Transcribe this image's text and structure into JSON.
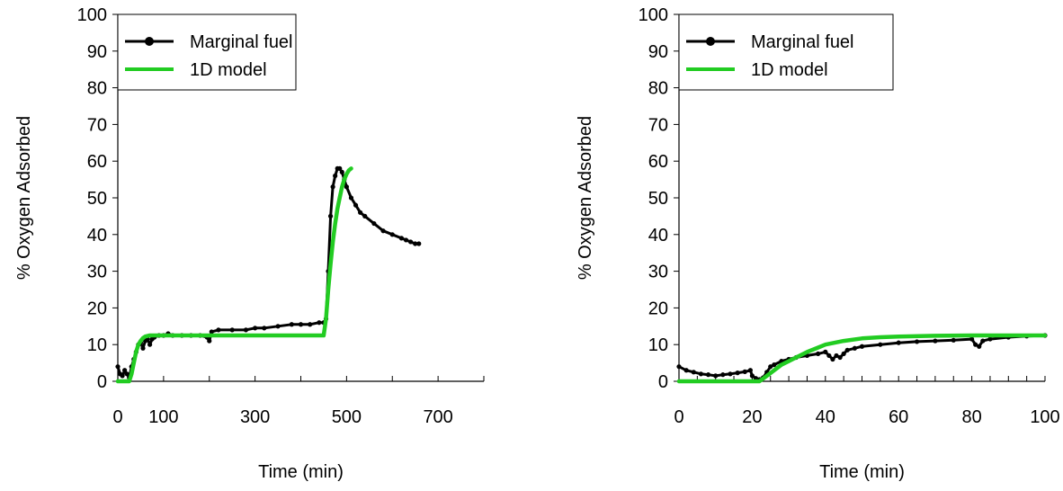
{
  "chart_data": [
    {
      "type": "line",
      "title": "",
      "xlabel": "Time (min)",
      "ylabel": "% Oxygen Adsorbed",
      "xlim": [
        0,
        800
      ],
      "ylim": [
        0,
        100
      ],
      "x_tick_labels": [
        {
          "value": 0,
          "label": "0"
        },
        {
          "value": 100,
          "label": "100"
        },
        {
          "value": 300,
          "label": "300"
        },
        {
          "value": 500,
          "label": "500"
        },
        {
          "value": 700,
          "label": "700"
        }
      ],
      "x_minor_ticks": [
        100,
        200,
        300,
        400,
        500,
        600,
        700,
        800
      ],
      "y_ticks": [
        0,
        10,
        20,
        30,
        40,
        50,
        60,
        70,
        80,
        90,
        100
      ],
      "grid": false,
      "legend": {
        "position": "top-left"
      },
      "series": [
        {
          "name": "Marginal fuel",
          "color": "#000000",
          "style": "line-markers",
          "x": [
            0,
            5,
            10,
            15,
            20,
            25,
            30,
            35,
            40,
            45,
            50,
            55,
            60,
            65,
            70,
            75,
            80,
            90,
            100,
            110,
            120,
            140,
            160,
            180,
            195,
            200,
            205,
            220,
            250,
            280,
            300,
            320,
            350,
            380,
            400,
            420,
            440,
            450,
            455,
            460,
            465,
            470,
            475,
            480,
            485,
            490,
            495,
            500,
            510,
            520,
            530,
            540,
            560,
            580,
            600,
            620,
            630,
            640,
            650,
            658
          ],
          "y": [
            4,
            2,
            1.5,
            3,
            2,
            1,
            4,
            6,
            8,
            10,
            10.5,
            9,
            11,
            11.5,
            10,
            11.5,
            12,
            12.5,
            12.5,
            13,
            12.5,
            12.5,
            12.5,
            12.5,
            12,
            11,
            13.5,
            14,
            14,
            14,
            14.5,
            14.5,
            15,
            15.5,
            15.5,
            15.5,
            16,
            16,
            17,
            30,
            45,
            53,
            56,
            58,
            58,
            57,
            55,
            53,
            50,
            48,
            46,
            45,
            43,
            41,
            40,
            39,
            38.5,
            38,
            37.5,
            37.5
          ]
        },
        {
          "name": "1D model",
          "color": "#22cc22",
          "style": "line",
          "x": [
            0,
            10,
            20,
            25,
            30,
            35,
            40,
            45,
            50,
            55,
            60,
            70,
            80,
            100,
            150,
            200,
            300,
            400,
            450,
            455,
            460,
            465,
            470,
            475,
            480,
            485,
            490,
            495,
            500,
            505,
            510
          ],
          "y": [
            0,
            0,
            0,
            0,
            2,
            5,
            8,
            10,
            11,
            11.8,
            12.2,
            12.5,
            12.5,
            12.5,
            12.5,
            12.5,
            12.5,
            12.5,
            12.5,
            17,
            25,
            32,
            38,
            43,
            47,
            50,
            53,
            55,
            56.5,
            57.5,
            58
          ]
        }
      ]
    },
    {
      "type": "line",
      "title": "",
      "xlabel": "Time (min)",
      "ylabel": "% Oxygen Adsorbed",
      "xlim": [
        0,
        100
      ],
      "ylim": [
        0,
        100
      ],
      "x_tick_labels": [
        {
          "value": 0,
          "label": "0"
        },
        {
          "value": 20,
          "label": "20"
        },
        {
          "value": 40,
          "label": "40"
        },
        {
          "value": 60,
          "label": "60"
        },
        {
          "value": 80,
          "label": "80"
        },
        {
          "value": 100,
          "label": "100"
        }
      ],
      "x_minor_ticks": [
        5,
        10,
        15,
        20,
        25,
        30,
        35,
        40,
        45,
        50,
        55,
        60,
        65,
        70,
        75,
        80,
        85,
        90,
        95,
        100
      ],
      "y_ticks": [
        0,
        10,
        20,
        30,
        40,
        50,
        60,
        70,
        80,
        90,
        100
      ],
      "grid": false,
      "legend": {
        "position": "top-left"
      },
      "series": [
        {
          "name": "Marginal fuel",
          "color": "#000000",
          "style": "line-markers",
          "x": [
            0,
            2,
            4,
            6,
            8,
            10,
            12,
            14,
            16,
            18,
            19.5,
            20,
            21,
            22,
            23,
            24,
            25,
            26,
            28,
            30,
            32,
            35,
            38,
            40,
            41,
            42,
            43,
            44,
            45,
            46,
            48,
            50,
            55,
            60,
            65,
            70,
            75,
            80,
            81,
            82,
            83,
            85,
            90,
            95,
            100
          ],
          "y": [
            4,
            3,
            2.5,
            2,
            1.8,
            1.5,
            1.8,
            2,
            2.3,
            2.6,
            3,
            1.5,
            0.8,
            0.5,
            1,
            2.5,
            4,
            4.5,
            5.5,
            6,
            6.5,
            7,
            7.5,
            8,
            7,
            6,
            7,
            6.5,
            7.5,
            8.5,
            9,
            9.5,
            10,
            10.5,
            10.8,
            11,
            11.2,
            11.5,
            10,
            9.5,
            11,
            11.5,
            12,
            12.3,
            12.5
          ]
        },
        {
          "name": "1D model",
          "color": "#22cc22",
          "style": "line",
          "x": [
            0,
            5,
            10,
            15,
            20,
            22,
            24,
            26,
            28,
            30,
            32,
            35,
            38,
            40,
            45,
            50,
            55,
            60,
            70,
            80,
            90,
            100
          ],
          "y": [
            0,
            0,
            0,
            0,
            0,
            0,
            1.5,
            3,
            4.5,
            5.5,
            6.5,
            8,
            9.2,
            10,
            11,
            11.7,
            12,
            12.2,
            12.4,
            12.5,
            12.5,
            12.5
          ]
        }
      ]
    }
  ]
}
